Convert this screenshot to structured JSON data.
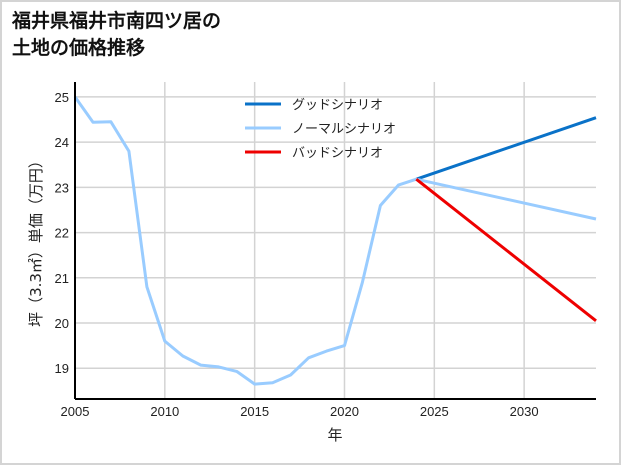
{
  "title_line1": "福井県福井市南四ツ居の",
  "title_line2": "土地の価格推移",
  "chart_data": {
    "type": "line",
    "title": "福井県福井市南四ツ居の土地の価格推移",
    "xlabel": "年",
    "ylabel": "坪（3.3㎡）単価（万円）",
    "xlim": [
      2005,
      2034
    ],
    "ylim": [
      18.32,
      25.33
    ],
    "x_ticks": [
      2005,
      2010,
      2015,
      2020,
      2025,
      2030
    ],
    "y_ticks": [
      19,
      20,
      21,
      22,
      23,
      24,
      25
    ],
    "grid": true,
    "legend_position": "upper center",
    "series": [
      {
        "name": "グッドシナリオ",
        "color": "#0a72c8",
        "x": [
          2024,
          2034
        ],
        "values": [
          23.18,
          24.54
        ]
      },
      {
        "name": "ノーマルシナリオ",
        "color": "#99ccff",
        "x": [
          2005,
          2006,
          2007,
          2008,
          2009,
          2010,
          2011,
          2012,
          2013,
          2014,
          2015,
          2016,
          2017,
          2018,
          2019,
          2020,
          2021,
          2022,
          2023,
          2024,
          2034
        ],
        "values": [
          25.0,
          24.44,
          24.45,
          23.8,
          20.8,
          19.6,
          19.27,
          19.07,
          19.03,
          18.93,
          18.65,
          18.68,
          18.85,
          19.23,
          19.38,
          19.5,
          20.9,
          22.6,
          23.05,
          23.18,
          22.3
        ]
      },
      {
        "name": "バッドシナリオ",
        "color": "#ee0000",
        "x": [
          2024,
          2034
        ],
        "values": [
          23.18,
          20.05
        ]
      }
    ]
  }
}
